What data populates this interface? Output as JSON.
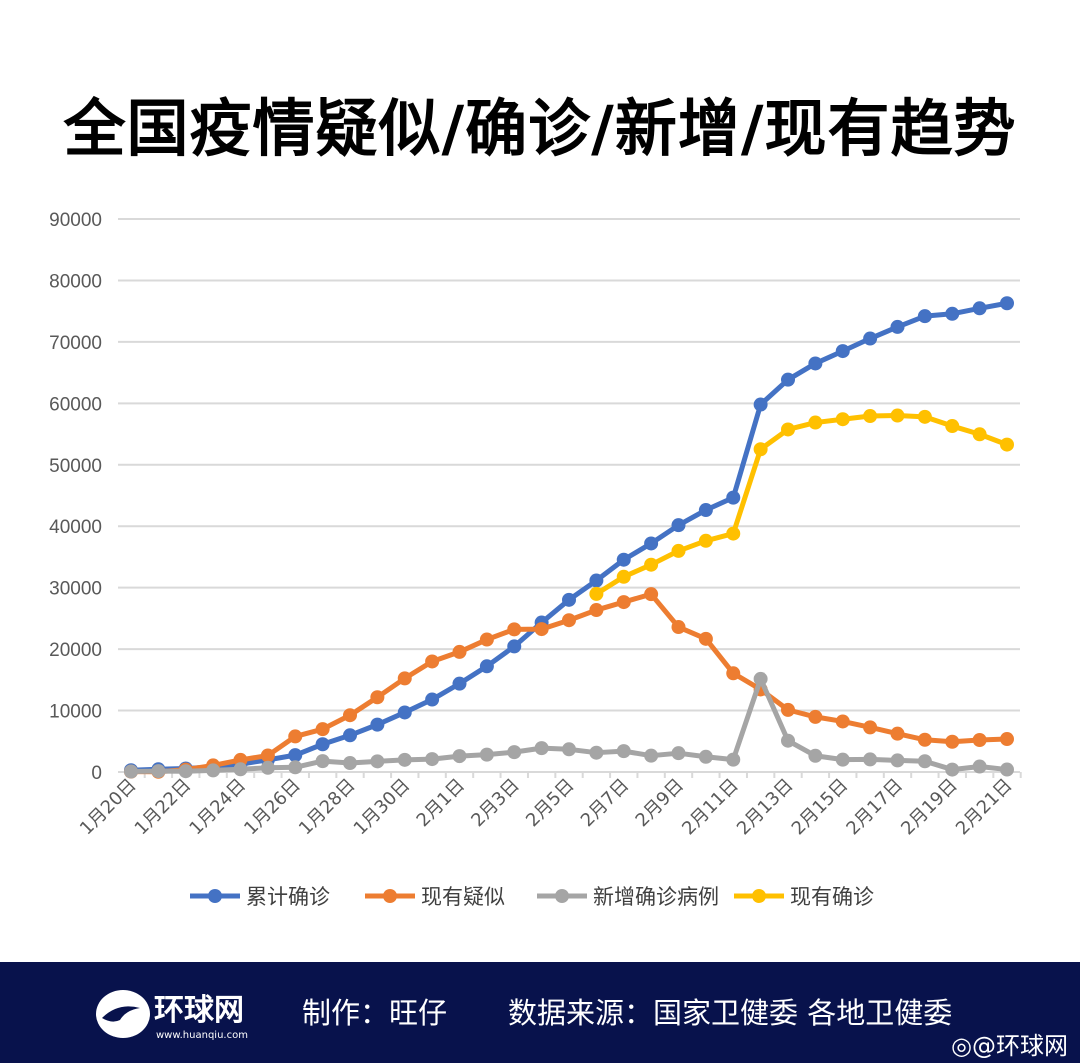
{
  "title": "全国疫情疑似/确诊/新增/现有趋势",
  "chart_data": {
    "type": "line",
    "title": "",
    "xlabel": "",
    "ylabel": "",
    "ylim": [
      0,
      90000
    ],
    "yticks": [
      0,
      10000,
      20000,
      30000,
      40000,
      50000,
      60000,
      70000,
      80000,
      90000
    ],
    "grid": true,
    "legend_position": "bottom",
    "x": [
      "1月20日",
      "1月21日",
      "1月22日",
      "1月23日",
      "1月24日",
      "1月25日",
      "1月26日",
      "1月27日",
      "1月28日",
      "1月29日",
      "1月30日",
      "1月31日",
      "2月1日",
      "2月2日",
      "2月3日",
      "2月4日",
      "2月5日",
      "2月6日",
      "2月7日",
      "2月8日",
      "2月9日",
      "2月10日",
      "2月11日",
      "2月12日",
      "2月13日",
      "2月14日",
      "2月15日",
      "2月16日",
      "2月17日",
      "2月18日",
      "2月19日",
      "2月20日",
      "2月21日"
    ],
    "xtick_labels": [
      "1月20日",
      "1月22日",
      "1月24日",
      "1月26日",
      "1月28日",
      "1月30日",
      "2月1日",
      "2月3日",
      "2月5日",
      "2月7日",
      "2月9日",
      "2月11日",
      "2月13日",
      "2月15日",
      "2月17日",
      "2月19日",
      "2月21日"
    ],
    "series": [
      {
        "name": "累计确诊",
        "color": "#4472c4",
        "values": [
          291,
          440,
          571,
          830,
          1287,
          1975,
          2744,
          4515,
          5974,
          7711,
          9692,
          11791,
          14380,
          17205,
          20438,
          24324,
          28018,
          31161,
          34546,
          37198,
          40171,
          42638,
          44653,
          59804,
          63851,
          66492,
          68500,
          70548,
          72436,
          74185,
          74576,
          75465,
          76288
        ]
      },
      {
        "name": "现有疑似",
        "color": "#ed7d31",
        "values": [
          54,
          37,
          393,
          1072,
          1965,
          2684,
          5794,
          6973,
          9239,
          12167,
          15238,
          17988,
          19544,
          21558,
          23214,
          23260,
          24702,
          26359,
          27657,
          28942,
          23589,
          21675,
          16067,
          13435,
          10109,
          8969,
          8228,
          7264,
          6242,
          5248,
          4922,
          5206,
          5365
        ]
      },
      {
        "name": "新增确诊病例",
        "color": "#a5a5a5",
        "values": [
          77,
          149,
          131,
          259,
          444,
          688,
          769,
          1771,
          1459,
          1737,
          1982,
          2102,
          2590,
          2829,
          3235,
          3887,
          3694,
          3143,
          3399,
          2656,
          3062,
          2478,
          2015,
          15152,
          5090,
          2641,
          2009,
          2048,
          1886,
          1749,
          394,
          889,
          397
        ]
      },
      {
        "name": "现有确诊",
        "color": "#ffc000",
        "values": [
          null,
          null,
          null,
          null,
          null,
          null,
          null,
          null,
          null,
          null,
          null,
          null,
          null,
          null,
          null,
          null,
          null,
          28985,
          31774,
          33738,
          35982,
          37626,
          38800,
          52526,
          55748,
          56873,
          57416,
          57934,
          58016,
          57805,
          56303,
          54965,
          53284
        ]
      }
    ]
  },
  "footer": {
    "logo_text": "环球网",
    "logo_url_text": "www.huanqiu.com",
    "producer": "制作：旺仔",
    "source": "数据来源：国家卫健委 各地卫健委",
    "weibo": "@环球网",
    "background": "#08124c"
  }
}
